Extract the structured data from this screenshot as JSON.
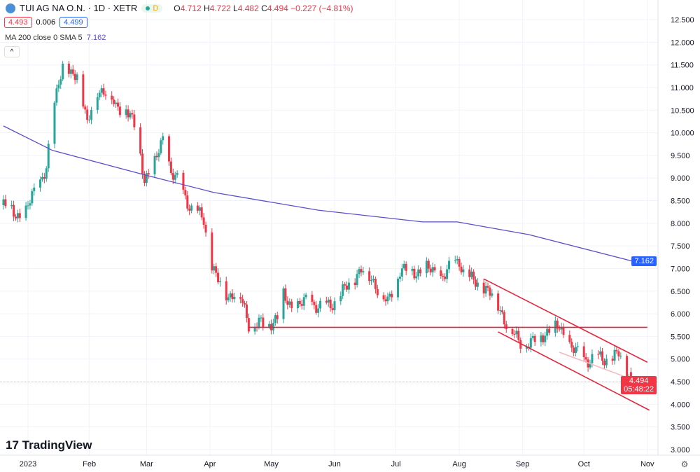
{
  "header": {
    "symbol": "TUI AG NA O.N. · 1D · XETR",
    "market_status": "D",
    "open": "4.712",
    "high": "4.722",
    "low": "4.482",
    "close": "4.494",
    "change": "−0.227 (−4.81%)",
    "bid": "4.493",
    "spread": "0.006",
    "ask": "4.499",
    "indicator": "MA 200 close 0 SMA 5",
    "indicator_value": "7.162"
  },
  "branding": "TradingView",
  "price_tag": {
    "price": "4.494",
    "countdown": "05:48:22"
  },
  "ma_tag": "7.162",
  "colors": {
    "up": "#26a69a",
    "down": "#f23645",
    "ma": "#5b4fc9",
    "trend": "#e5263a",
    "pink": "#f5b8be"
  },
  "chart_data": {
    "type": "candlestick",
    "x_unit": "day of year 2023",
    "x_ticks": [
      {
        "day": 2,
        "label": "2023"
      },
      {
        "day": 32,
        "label": "Feb"
      },
      {
        "day": 60,
        "label": "Mar"
      },
      {
        "day": 91,
        "label": "Apr"
      },
      {
        "day": 121,
        "label": "May"
      },
      {
        "day": 152,
        "label": "Jun"
      },
      {
        "day": 182,
        "label": "Jul"
      },
      {
        "day": 213,
        "label": "Aug"
      },
      {
        "day": 244,
        "label": "Sep"
      },
      {
        "day": 274,
        "label": "Oct"
      },
      {
        "day": 305,
        "label": "Nov"
      }
    ],
    "y_ticks": [
      "12.500",
      "12.000",
      "11.500",
      "11.000",
      "10.500",
      "10.000",
      "9.500",
      "9.000",
      "8.500",
      "8.000",
      "7.500",
      "7.000",
      "6.500",
      "6.000",
      "5.500",
      "5.000",
      "4.500",
      "4.000",
      "3.500",
      "3.000"
    ],
    "ylim": [
      3.0,
      12.5
    ],
    "price_path": [
      [
        -10,
        8.4
      ],
      [
        0,
        8.1
      ],
      [
        4,
        8.6
      ],
      [
        11,
        9.2
      ],
      [
        14,
        10.3
      ],
      [
        17,
        11.2
      ],
      [
        19,
        11.5
      ],
      [
        23,
        11.2
      ],
      [
        27,
        11.3
      ],
      [
        31,
        10.2
      ],
      [
        36,
        10.9
      ],
      [
        41,
        11.0
      ],
      [
        45,
        10.5
      ],
      [
        50,
        10.6
      ],
      [
        55,
        10.0
      ],
      [
        59,
        9.0
      ],
      [
        64,
        9.3
      ],
      [
        68,
        9.9
      ],
      [
        72,
        9.1
      ],
      [
        77,
        8.8
      ],
      [
        82,
        8.3
      ],
      [
        88,
        8.1
      ],
      [
        91,
        7.2
      ],
      [
        94,
        6.8
      ],
      [
        100,
        6.4
      ],
      [
        105,
        6.5
      ],
      [
        110,
        5.8
      ],
      [
        117,
        5.75
      ],
      [
        124,
        5.9
      ],
      [
        127,
        6.4
      ],
      [
        132,
        6.1
      ],
      [
        139,
        6.3
      ],
      [
        146,
        6.1
      ],
      [
        153,
        6.3
      ],
      [
        160,
        6.7
      ],
      [
        165,
        7.0
      ],
      [
        173,
        6.6
      ],
      [
        178,
        6.2
      ],
      [
        184,
        7.0
      ],
      [
        190,
        6.9
      ],
      [
        197,
        7.0
      ],
      [
        204,
        6.8
      ],
      [
        213,
        7.2
      ],
      [
        216,
        6.8
      ],
      [
        225,
        6.6
      ],
      [
        231,
        6.3
      ],
      [
        237,
        5.7
      ],
      [
        242,
        5.4
      ],
      [
        249,
        5.35
      ],
      [
        255,
        5.6
      ],
      [
        262,
        5.7
      ],
      [
        267,
        5.3
      ],
      [
        273,
        5.0
      ],
      [
        279,
        5.0
      ],
      [
        286,
        5.0
      ],
      [
        291,
        5.1
      ],
      [
        295,
        4.7
      ],
      [
        297,
        4.494
      ]
    ],
    "ma200": [
      [
        -10,
        10.15
      ],
      [
        14,
        9.61
      ],
      [
        59,
        9.07
      ],
      [
        93,
        8.68
      ],
      [
        144,
        8.29
      ],
      [
        195,
        8.03
      ],
      [
        212,
        8.03
      ],
      [
        247,
        7.75
      ],
      [
        298,
        7.16
      ]
    ],
    "lines": [
      {
        "name": "support",
        "points": [
          [
            110,
            5.7
          ],
          [
            305,
            5.7
          ]
        ]
      },
      {
        "name": "channel-upper",
        "points[": 0,
        "points": [
          [
            225,
            6.77
          ],
          [
            305,
            4.93
          ]
        ]
      },
      {
        "name": "channel-lower",
        "points": [
          [
            232,
            5.6
          ],
          [
            306,
            3.87
          ]
        ]
      },
      {
        "name": "pink-trend",
        "points": [
          [
            262,
            5.15
          ],
          [
            306,
            4.41
          ]
        ]
      }
    ],
    "last_price": 4.494
  }
}
